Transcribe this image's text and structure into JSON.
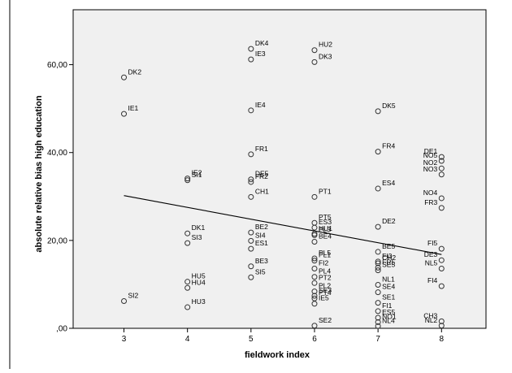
{
  "chart_data": {
    "type": "scatter",
    "xlabel": "fieldwork index",
    "ylabel": "absolute relative bias high education",
    "xlim": [
      2.2,
      8.7
    ],
    "ylim": [
      0,
      72.5
    ],
    "x_ticks": [
      3,
      4,
      5,
      6,
      7,
      8
    ],
    "x_tick_labels": [
      "3",
      "4",
      "5",
      "6",
      "7",
      "8"
    ],
    "y_ticks": [
      0,
      20,
      40,
      60
    ],
    "y_tick_labels": [
      ",00",
      "20,00",
      "40,00",
      "60,00"
    ],
    "grid": false,
    "plot_background": "#f0f0f0",
    "marker": "open-circle",
    "fit_line": {
      "x": [
        3,
        8
      ],
      "y": [
        30.2,
        16.8
      ]
    },
    "points": [
      {
        "x": 3,
        "y": 57.1,
        "label": "DK2"
      },
      {
        "x": 3,
        "y": 48.8,
        "label": "IE1"
      },
      {
        "x": 3,
        "y": 6.2,
        "label": "SI2"
      },
      {
        "x": 4,
        "y": 34.1,
        "label": "IE2"
      },
      {
        "x": 4,
        "y": 33.7,
        "label": "SI1"
      },
      {
        "x": 4,
        "y": 21.6,
        "label": "DK1"
      },
      {
        "x": 4,
        "y": 19.4,
        "label": "SI3"
      },
      {
        "x": 4,
        "y": 10.6,
        "label": "HU5"
      },
      {
        "x": 4,
        "y": 9.2,
        "label": "HU4"
      },
      {
        "x": 4,
        "y": 4.8,
        "label": "HU3"
      },
      {
        "x": 5,
        "y": 63.6,
        "label": "DK4"
      },
      {
        "x": 5,
        "y": 61.2,
        "label": "IE3"
      },
      {
        "x": 5,
        "y": 49.6,
        "label": "IE4"
      },
      {
        "x": 5,
        "y": 39.6,
        "label": "FR1"
      },
      {
        "x": 5,
        "y": 33.9,
        "label": "DE5"
      },
      {
        "x": 5,
        "y": 33.3,
        "label": "FR2"
      },
      {
        "x": 5,
        "y": 29.9,
        "label": "CH1"
      },
      {
        "x": 5,
        "y": 21.8,
        "label": "BE2"
      },
      {
        "x": 5,
        "y": 19.9,
        "label": "SI4"
      },
      {
        "x": 5,
        "y": 18.1,
        "label": "ES1"
      },
      {
        "x": 5,
        "y": 14.1,
        "label": "BE3"
      },
      {
        "x": 5,
        "y": 11.6,
        "label": "SI5"
      },
      {
        "x": 6,
        "y": 63.3,
        "label": "HU2"
      },
      {
        "x": 6,
        "y": 60.6,
        "label": "DK3"
      },
      {
        "x": 6,
        "y": 29.9,
        "label": "PT1"
      },
      {
        "x": 6,
        "y": 24.0,
        "label": "PT5"
      },
      {
        "x": 6,
        "y": 22.9,
        "label": "ES3"
      },
      {
        "x": 6,
        "y": 21.5,
        "label": "HU1"
      },
      {
        "x": 6,
        "y": 21.2,
        "label": "PL3"
      },
      {
        "x": 6,
        "y": 19.7,
        "label": "BE4"
      },
      {
        "x": 6,
        "y": 15.9,
        "label": "PL5"
      },
      {
        "x": 6,
        "y": 15.4,
        "label": "PL1"
      },
      {
        "x": 6,
        "y": 13.6,
        "label": "FI2"
      },
      {
        "x": 6,
        "y": 11.7,
        "label": "PL4"
      },
      {
        "x": 6,
        "y": 10.3,
        "label": "PT2"
      },
      {
        "x": 6,
        "y": 8.4,
        "label": "PL2"
      },
      {
        "x": 6,
        "y": 7.4,
        "label": "SE3"
      },
      {
        "x": 6,
        "y": 6.8,
        "label": "PT4"
      },
      {
        "x": 6,
        "y": 5.6,
        "label": "IE5"
      },
      {
        "x": 6,
        "y": 0.6,
        "label": "SE2"
      },
      {
        "x": 7,
        "y": 49.4,
        "label": "DK5"
      },
      {
        "x": 7,
        "y": 40.2,
        "label": "FR4"
      },
      {
        "x": 7,
        "y": 31.8,
        "label": "ES4"
      },
      {
        "x": 7,
        "y": 23.1,
        "label": "DE2"
      },
      {
        "x": 7,
        "y": 17.4,
        "label": "BE5"
      },
      {
        "x": 7,
        "y": 15.2,
        "label": "FI3"
      },
      {
        "x": 7,
        "y": 14.8,
        "label": "CH2"
      },
      {
        "x": 7,
        "y": 13.8,
        "label": "FR5"
      },
      {
        "x": 7,
        "y": 13.2,
        "label": "SE5"
      },
      {
        "x": 7,
        "y": 9.9,
        "label": "NL1"
      },
      {
        "x": 7,
        "y": 8.2,
        "label": "SE4"
      },
      {
        "x": 7,
        "y": 5.8,
        "label": "SE1"
      },
      {
        "x": 7,
        "y": 3.9,
        "label": "FI1"
      },
      {
        "x": 7,
        "y": 2.4,
        "label": "ES5"
      },
      {
        "x": 7,
        "y": 1.4,
        "label": "NO1"
      },
      {
        "x": 7,
        "y": 0.5,
        "label": "NL4"
      },
      {
        "x": 8,
        "y": 39.0,
        "label": "DE1"
      },
      {
        "x": 8,
        "y": 38.1,
        "label": "NO5"
      },
      {
        "x": 8,
        "y": 36.4,
        "label": "NO2"
      },
      {
        "x": 8,
        "y": 35.0,
        "label": "NO3"
      },
      {
        "x": 8,
        "y": 29.6,
        "label": "NO4"
      },
      {
        "x": 8,
        "y": 27.4,
        "label": "FR3"
      },
      {
        "x": 8,
        "y": 18.1,
        "label": "FI5"
      },
      {
        "x": 8,
        "y": 15.5,
        "label": "DE3"
      },
      {
        "x": 8,
        "y": 13.6,
        "label": "NL5"
      },
      {
        "x": 8,
        "y": 9.6,
        "label": "FI4"
      },
      {
        "x": 8,
        "y": 1.6,
        "label": "CH3"
      },
      {
        "x": 8,
        "y": 0.6,
        "label": "NL2"
      }
    ]
  }
}
